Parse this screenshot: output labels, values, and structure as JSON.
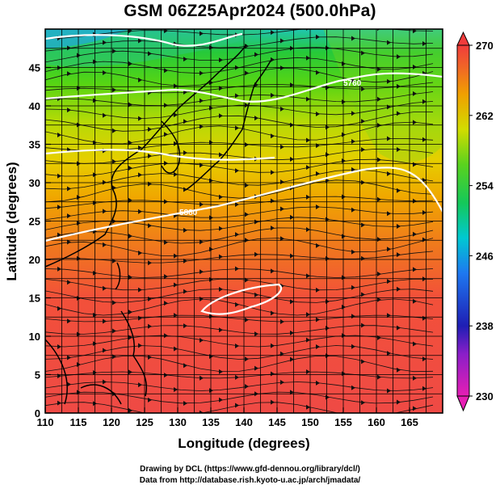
{
  "title": "GSM 06Z25Apr2024 (500.0hPa)",
  "chart_data": {
    "type": "heatmap",
    "title": "GSM 06Z25Apr2024 (500.0hPa)",
    "xlabel": "Longitude (degrees)",
    "ylabel": "Latitude  (degrees)",
    "xlim": [
      110,
      170
    ],
    "ylim": [
      0,
      50
    ],
    "x_ticks": [
      "110",
      "115",
      "120",
      "125",
      "130",
      "135",
      "140",
      "145",
      "150",
      "155",
      "160",
      "165"
    ],
    "y_ticks": [
      "0",
      "5",
      "10",
      "15",
      "20",
      "25",
      "30",
      "35",
      "40",
      "45"
    ],
    "grid": true,
    "colorbar": {
      "ticks": [
        "230",
        "238",
        "246",
        "254",
        "262",
        "270"
      ],
      "min": 230,
      "max": 270
    },
    "contour_labels": [
      "5760",
      "5880"
    ]
  },
  "credits": {
    "line1": "Drawing by DCL (https://www.gfd-dennou.org/library/dcl/)",
    "line2": "Data from http://database.rish.kyoto-u.ac.jp/arch/jmadata/"
  }
}
